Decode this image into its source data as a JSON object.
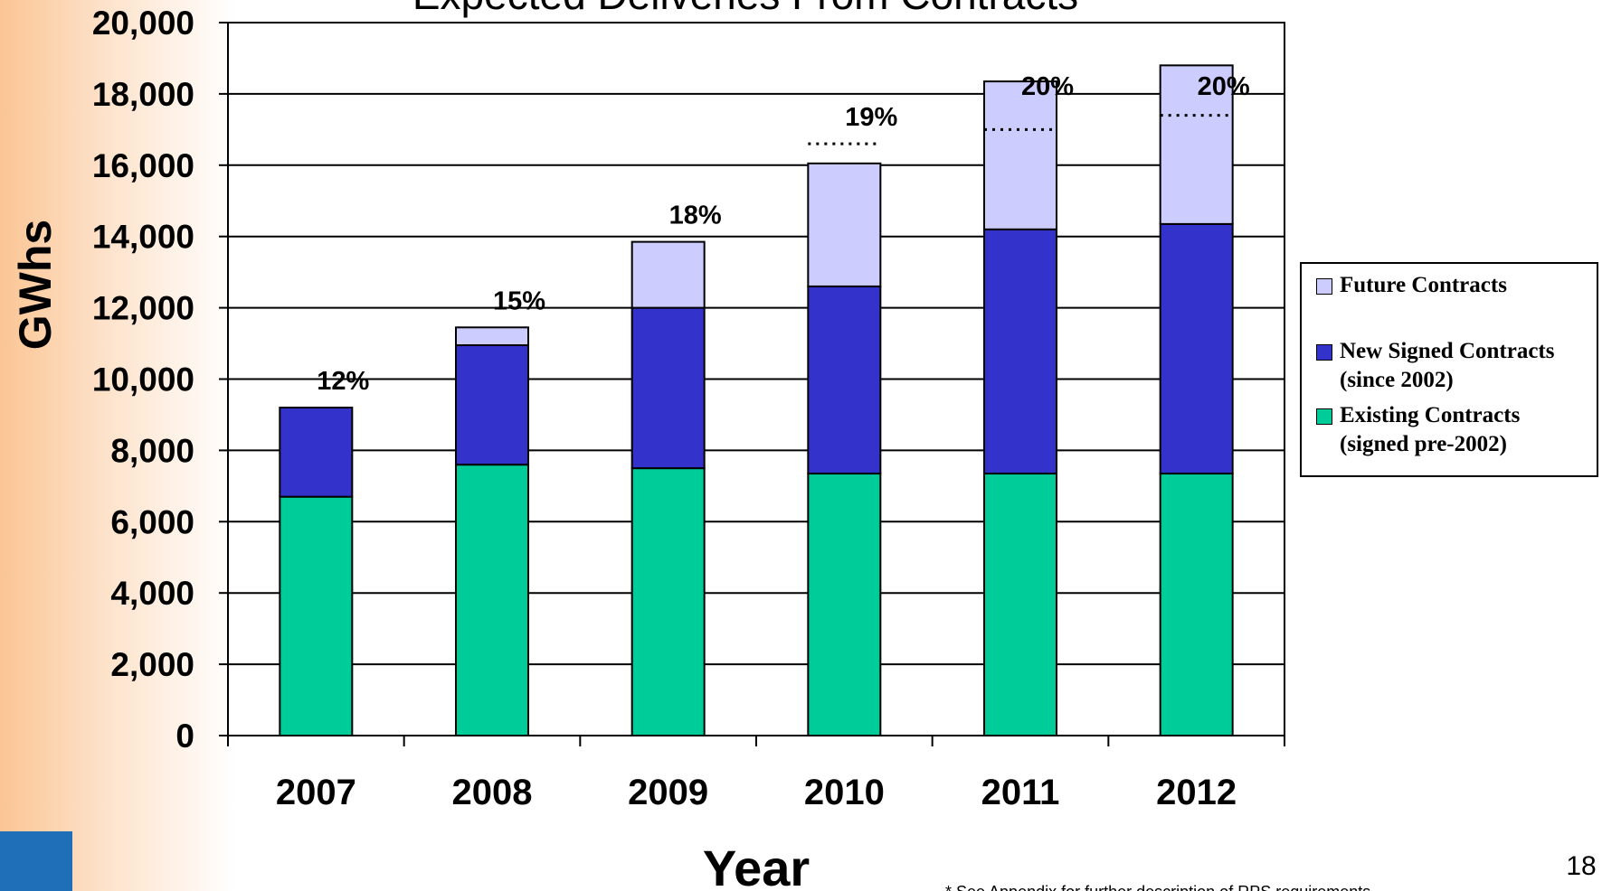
{
  "chart_data": {
    "type": "stacked_bar",
    "title": "Expected Deliveries From Contracts",
    "y_label": "GWhs",
    "x_label": "Year",
    "categories": [
      "2007",
      "2008",
      "2009",
      "2010",
      "2011",
      "2012"
    ],
    "series": [
      {
        "name": "Existing Contracts (signed pre-2002)",
        "color": "#00cc99",
        "values": [
          6700,
          7600,
          7500,
          7350,
          7350,
          7350
        ]
      },
      {
        "name": "New Signed Contracts (since 2002)",
        "color": "#3333cc",
        "values": [
          2500,
          3350,
          4500,
          5250,
          6850,
          7000
        ]
      },
      {
        "name": "Future Contracts",
        "color": "#ccccff",
        "values": [
          0,
          500,
          1850,
          3450,
          4150,
          4450
        ]
      }
    ],
    "annotations": [
      "12%",
      "15%",
      "18%",
      "19%",
      "20%",
      "20%"
    ],
    "targets": [
      null,
      null,
      null,
      16600,
      17000,
      17400
    ],
    "ylim": [
      0,
      20000
    ],
    "yticks": [
      {
        "value": 0,
        "label": "0"
      },
      {
        "value": 2000,
        "label": "2,000"
      },
      {
        "value": 4000,
        "label": "4,000"
      },
      {
        "value": 6000,
        "label": "6,000"
      },
      {
        "value": 8000,
        "label": "8,000"
      },
      {
        "value": 10000,
        "label": "10,000"
      },
      {
        "value": 12000,
        "label": "12,000"
      },
      {
        "value": 14000,
        "label": "14,000"
      },
      {
        "value": 16000,
        "label": "16,000"
      },
      {
        "value": 18000,
        "label": "18,000"
      },
      {
        "value": 20000,
        "label": "20,000"
      }
    ],
    "grid": true,
    "footnote": "* See Appendix for further description of RPS requirements",
    "page_number": "18"
  }
}
